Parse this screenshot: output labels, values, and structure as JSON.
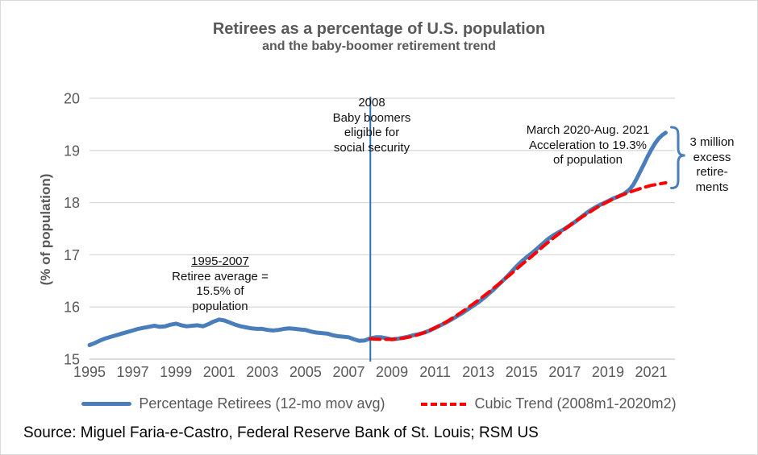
{
  "source": "Source: Miguel Faria-e-Castro, Federal Reserve Bank of St. Louis; RSM US",
  "colors": {
    "series_blue": "#4a7ebb",
    "trend_red": "#ff0000",
    "event_line_blue": "#2e74b5",
    "grid_gray": "#d9d9d9",
    "axis_text_gray": "#595959",
    "annotation_black": "#111111"
  },
  "chart_data": {
    "type": "line",
    "title": "Retirees as a percentage of U.S. population",
    "subtitle": "and the baby-boomer retirement trend",
    "xlabel": "",
    "ylabel": "(% of population)",
    "ylim": [
      15,
      20
    ],
    "xlim": [
      1995,
      2022.1
    ],
    "yticks": [
      15,
      16,
      17,
      18,
      19,
      20
    ],
    "xticks": [
      1995,
      1997,
      1999,
      2001,
      2003,
      2005,
      2007,
      2009,
      2011,
      2013,
      2015,
      2017,
      2019,
      2021
    ],
    "grid": "horizontal",
    "legend_position": "bottom",
    "event_line": {
      "x": 2008,
      "color": "#2e74b5"
    },
    "annotations": [
      {
        "id": "baby-boomers-2008",
        "heading": "2008",
        "text": "Baby boomers\neligible for\nsocial security"
      },
      {
        "id": "retiree-average",
        "heading": "1995-2007",
        "text": "Retiree average =\n15.5% of\npopulation"
      },
      {
        "id": "acceleration",
        "heading": "",
        "text": "March 2020-Aug. 2021\nAcceleration to 19.3%\nof population"
      },
      {
        "id": "excess-retirements",
        "heading": "",
        "text": "3 million\nexcess\nretire-\nments"
      }
    ],
    "series": [
      {
        "name": "Percentage Retirees (12-mo mov avg)",
        "color": "#4a7ebb",
        "style": "solid",
        "points": [
          [
            1995.0,
            15.27
          ],
          [
            1995.25,
            15.31
          ],
          [
            1995.5,
            15.36
          ],
          [
            1995.75,
            15.4
          ],
          [
            1996.0,
            15.43
          ],
          [
            1996.25,
            15.46
          ],
          [
            1996.5,
            15.49
          ],
          [
            1996.75,
            15.52
          ],
          [
            1997.0,
            15.55
          ],
          [
            1997.25,
            15.58
          ],
          [
            1997.5,
            15.6
          ],
          [
            1997.75,
            15.62
          ],
          [
            1998.0,
            15.64
          ],
          [
            1998.25,
            15.62
          ],
          [
            1998.5,
            15.63
          ],
          [
            1998.75,
            15.66
          ],
          [
            1999.0,
            15.68
          ],
          [
            1999.25,
            15.65
          ],
          [
            1999.5,
            15.63
          ],
          [
            1999.75,
            15.64
          ],
          [
            2000.0,
            15.65
          ],
          [
            2000.25,
            15.63
          ],
          [
            2000.5,
            15.67
          ],
          [
            2000.75,
            15.72
          ],
          [
            2001.0,
            15.76
          ],
          [
            2001.25,
            15.74
          ],
          [
            2001.5,
            15.7
          ],
          [
            2001.75,
            15.66
          ],
          [
            2002.0,
            15.63
          ],
          [
            2002.25,
            15.61
          ],
          [
            2002.5,
            15.59
          ],
          [
            2002.75,
            15.58
          ],
          [
            2003.0,
            15.58
          ],
          [
            2003.25,
            15.56
          ],
          [
            2003.5,
            15.55
          ],
          [
            2003.75,
            15.56
          ],
          [
            2004.0,
            15.58
          ],
          [
            2004.25,
            15.59
          ],
          [
            2004.5,
            15.58
          ],
          [
            2004.75,
            15.57
          ],
          [
            2005.0,
            15.56
          ],
          [
            2005.25,
            15.53
          ],
          [
            2005.5,
            15.51
          ],
          [
            2005.75,
            15.5
          ],
          [
            2006.0,
            15.49
          ],
          [
            2006.25,
            15.46
          ],
          [
            2006.5,
            15.44
          ],
          [
            2006.75,
            15.43
          ],
          [
            2007.0,
            15.42
          ],
          [
            2007.25,
            15.38
          ],
          [
            2007.5,
            15.35
          ],
          [
            2007.75,
            15.36
          ],
          [
            2008.0,
            15.4
          ],
          [
            2008.25,
            15.42
          ],
          [
            2008.5,
            15.42
          ],
          [
            2008.75,
            15.4
          ],
          [
            2009.0,
            15.38
          ],
          [
            2009.25,
            15.39
          ],
          [
            2009.5,
            15.41
          ],
          [
            2009.75,
            15.43
          ],
          [
            2010.0,
            15.46
          ],
          [
            2010.25,
            15.48
          ],
          [
            2010.5,
            15.51
          ],
          [
            2010.75,
            15.55
          ],
          [
            2011.0,
            15.6
          ],
          [
            2011.25,
            15.65
          ],
          [
            2011.5,
            15.7
          ],
          [
            2011.75,
            15.76
          ],
          [
            2012.0,
            15.82
          ],
          [
            2012.25,
            15.88
          ],
          [
            2012.5,
            15.95
          ],
          [
            2012.75,
            16.02
          ],
          [
            2013.0,
            16.09
          ],
          [
            2013.25,
            16.17
          ],
          [
            2013.5,
            16.26
          ],
          [
            2013.75,
            16.35
          ],
          [
            2014.0,
            16.45
          ],
          [
            2014.25,
            16.55
          ],
          [
            2014.5,
            16.66
          ],
          [
            2014.75,
            16.77
          ],
          [
            2015.0,
            16.87
          ],
          [
            2015.25,
            16.96
          ],
          [
            2015.5,
            17.04
          ],
          [
            2015.75,
            17.13
          ],
          [
            2016.0,
            17.22
          ],
          [
            2016.25,
            17.31
          ],
          [
            2016.5,
            17.38
          ],
          [
            2016.75,
            17.44
          ],
          [
            2017.0,
            17.5
          ],
          [
            2017.25,
            17.57
          ],
          [
            2017.5,
            17.64
          ],
          [
            2017.75,
            17.72
          ],
          [
            2018.0,
            17.8
          ],
          [
            2018.25,
            17.87
          ],
          [
            2018.5,
            17.93
          ],
          [
            2018.75,
            17.98
          ],
          [
            2019.0,
            18.03
          ],
          [
            2019.25,
            18.08
          ],
          [
            2019.5,
            18.12
          ],
          [
            2019.75,
            18.17
          ],
          [
            2020.0,
            18.25
          ],
          [
            2020.17,
            18.34
          ],
          [
            2020.33,
            18.46
          ],
          [
            2020.5,
            18.6
          ],
          [
            2020.67,
            18.74
          ],
          [
            2020.83,
            18.88
          ],
          [
            2021.0,
            19.01
          ],
          [
            2021.17,
            19.13
          ],
          [
            2021.33,
            19.22
          ],
          [
            2021.5,
            19.29
          ],
          [
            2021.67,
            19.34
          ]
        ]
      },
      {
        "name": "Cubic Trend (2008m1-2020m2)",
        "color": "#ff0000",
        "style": "dashed",
        "points": [
          [
            2008.0,
            15.39
          ],
          [
            2008.5,
            15.38
          ],
          [
            2009.0,
            15.38
          ],
          [
            2009.5,
            15.4
          ],
          [
            2010.0,
            15.44
          ],
          [
            2010.5,
            15.51
          ],
          [
            2011.0,
            15.6
          ],
          [
            2011.5,
            15.71
          ],
          [
            2012.0,
            15.84
          ],
          [
            2012.5,
            15.98
          ],
          [
            2013.0,
            16.13
          ],
          [
            2013.5,
            16.29
          ],
          [
            2014.0,
            16.46
          ],
          [
            2014.5,
            16.63
          ],
          [
            2015.0,
            16.81
          ],
          [
            2015.5,
            16.98
          ],
          [
            2016.0,
            17.16
          ],
          [
            2016.5,
            17.33
          ],
          [
            2017.0,
            17.49
          ],
          [
            2017.5,
            17.64
          ],
          [
            2018.0,
            17.78
          ],
          [
            2018.5,
            17.91
          ],
          [
            2019.0,
            18.02
          ],
          [
            2019.5,
            18.12
          ],
          [
            2020.0,
            18.2
          ],
          [
            2020.5,
            18.27
          ],
          [
            2021.0,
            18.33
          ],
          [
            2021.67,
            18.38
          ]
        ]
      }
    ]
  }
}
